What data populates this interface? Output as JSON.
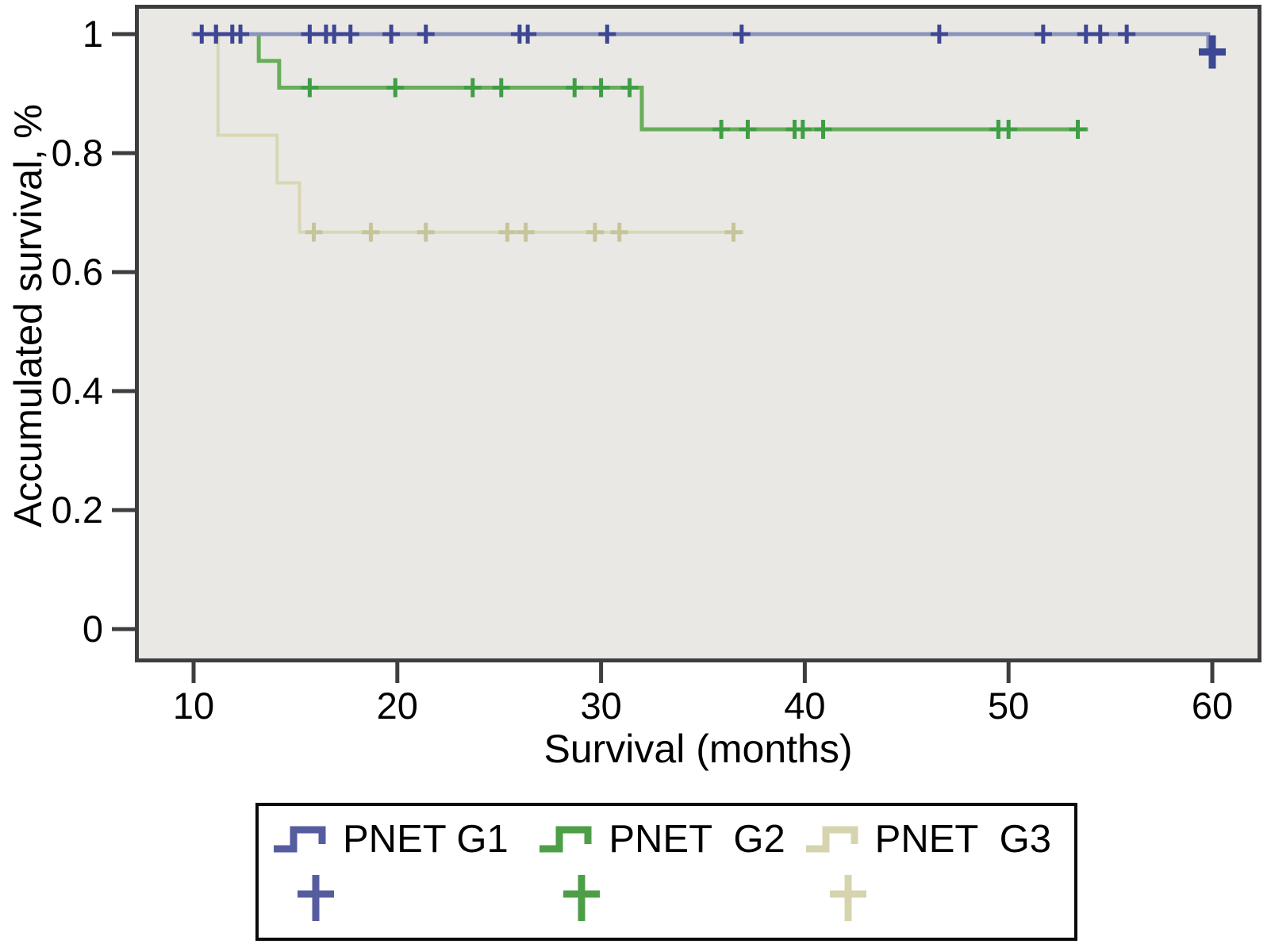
{
  "figure": {
    "background": "#ffffff",
    "plot_background": "#e9e8e5",
    "plot_border_color": "#3e3e3e",
    "tick_color": "#3e3e3e"
  },
  "chart_data": {
    "type": "line",
    "subtype": "kaplan-meier-step",
    "title": "",
    "xlabel": "Survival (months)",
    "ylabel": "Accumulated survival, %",
    "xlim": [
      7.1,
      62.4
    ],
    "ylim": [
      -0.053,
      1.047
    ],
    "x_ticks": [
      10,
      20,
      30,
      40,
      50,
      60
    ],
    "x_tick_labels": [
      "10",
      "20",
      "30",
      "40",
      "50",
      "60"
    ],
    "y_ticks": [
      0,
      0.2,
      0.4,
      0.6,
      0.8,
      1
    ],
    "y_tick_labels": [
      "0",
      "0.2",
      "0.4",
      "0.6",
      "0.8",
      "1"
    ],
    "grid": false,
    "legend_position": "bottom",
    "series": [
      {
        "name": "PNET G3",
        "line_color": "#d9d7b3",
        "censor_color": "#c6c49a",
        "line_width": 4,
        "step_path": [
          [
            10.8,
            1
          ],
          [
            11.2,
            1
          ],
          [
            11.2,
            0.83
          ],
          [
            14.1,
            0.83
          ],
          [
            14.1,
            0.75
          ],
          [
            15.2,
            0.75
          ],
          [
            15.2,
            0.667
          ],
          [
            37,
            0.667
          ]
        ],
        "censors": [
          [
            15.9,
            0.667
          ],
          [
            18.7,
            0.667
          ],
          [
            21.4,
            0.667
          ],
          [
            25.4,
            0.667
          ],
          [
            26.3,
            0.667
          ],
          [
            29.7,
            0.667
          ],
          [
            30.9,
            0.667
          ],
          [
            36.5,
            0.667
          ]
        ]
      },
      {
        "name": "PNET G2",
        "line_color": "#68ad59",
        "censor_color": "#3f9e44",
        "line_width": 5,
        "step_path": [
          [
            10.5,
            1
          ],
          [
            13.2,
            1
          ],
          [
            13.2,
            0.955
          ],
          [
            14.2,
            0.955
          ],
          [
            14.2,
            0.91
          ],
          [
            32,
            0.91
          ],
          [
            32,
            0.84
          ],
          [
            53.9,
            0.84
          ]
        ],
        "censors": [
          [
            11.1,
            1
          ],
          [
            15.7,
            0.91
          ],
          [
            19.9,
            0.91
          ],
          [
            23.7,
            0.91
          ],
          [
            25.1,
            0.91
          ],
          [
            28.7,
            0.91
          ],
          [
            30.0,
            0.91
          ],
          [
            31.4,
            0.91
          ],
          [
            35.9,
            0.84
          ],
          [
            37.2,
            0.84
          ],
          [
            39.5,
            0.84
          ],
          [
            39.9,
            0.84
          ],
          [
            40.9,
            0.84
          ],
          [
            49.5,
            0.84
          ],
          [
            50.0,
            0.84
          ],
          [
            53.4,
            0.84
          ]
        ]
      },
      {
        "name": "PNET G1",
        "line_color": "#8b94bc",
        "censor_color": "#3d4793",
        "line_width": 5,
        "step_path": [
          [
            9.9,
            1
          ],
          [
            59.8,
            1
          ],
          [
            59.8,
            0.97
          ],
          [
            60.3,
            0.97
          ]
        ],
        "censors": [
          [
            10.4,
            1
          ],
          [
            11.1,
            1
          ],
          [
            11.9,
            1
          ],
          [
            12.3,
            1
          ],
          [
            15.7,
            1
          ],
          [
            16.5,
            1
          ],
          [
            16.9,
            1
          ],
          [
            17.7,
            1
          ],
          [
            19.7,
            1
          ],
          [
            21.4,
            1
          ],
          [
            26.0,
            1
          ],
          [
            26.4,
            1
          ],
          [
            30.3,
            1
          ],
          [
            36.9,
            1
          ],
          [
            46.6,
            1
          ],
          [
            51.7,
            1
          ],
          [
            53.8,
            1
          ],
          [
            54.5,
            1
          ],
          [
            55.8,
            1
          ]
        ],
        "final_censor": [
          60.0,
          0.97
        ]
      }
    ]
  },
  "legend": {
    "items": [
      {
        "label": "PNET G1",
        "color": "#565d9f"
      },
      {
        "label": "PNET  G2",
        "color": "#4d9f47"
      },
      {
        "label": "PNET  G3",
        "color": "#d6d4ae"
      }
    ]
  }
}
